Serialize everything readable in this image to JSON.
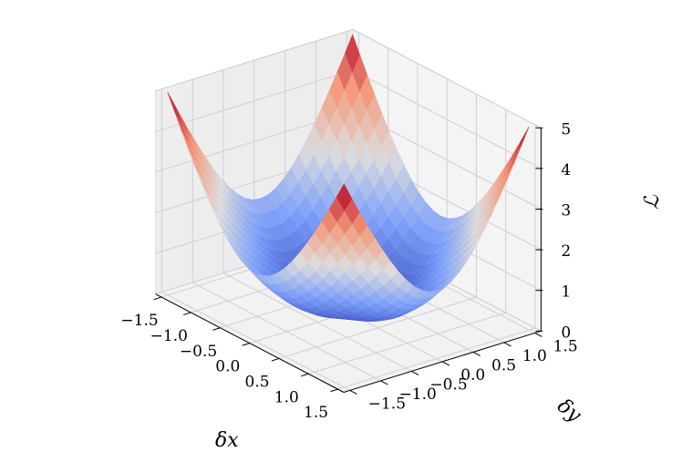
{
  "chart_data": {
    "type": "surface3d",
    "title": "",
    "function": "L = (δx^2 + δy^2)·(1 + 0.5·sin(2θ)^2), peak 5 at corners, 0 at center",
    "x": {
      "label": "δx",
      "range": [
        -1.6,
        1.6
      ],
      "ticks": [
        -1.5,
        -1.0,
        -0.5,
        0.0,
        0.5,
        1.0,
        1.5
      ]
    },
    "y": {
      "label": "δy",
      "range": [
        -1.6,
        1.6
      ],
      "ticks": [
        -1.5,
        -1.0,
        -0.5,
        0.0,
        0.5,
        1.0,
        1.5
      ]
    },
    "z": {
      "label": "ℒ",
      "range": [
        0,
        5
      ],
      "ticks": [
        0,
        1,
        2,
        3,
        4,
        5
      ]
    },
    "x_tick_labels": [
      "−1.5",
      "−1.0",
      "−0.5",
      "0.0",
      "0.5",
      "1.0",
      "1.5"
    ],
    "y_tick_labels": [
      "−1.5",
      "−1.0",
      "−0.5",
      "0.0",
      "0.5",
      "1.0",
      "1.5"
    ],
    "z_tick_labels": [
      "0",
      "1",
      "2",
      "3",
      "4",
      "5"
    ],
    "colormap": "coolwarm",
    "colors": {
      "low": "#3b4cc0",
      "mid": "#dddddd",
      "high": "#b40426",
      "pane": "#f2f2f2",
      "grid": "#cfcfcf"
    },
    "grid": true
  }
}
